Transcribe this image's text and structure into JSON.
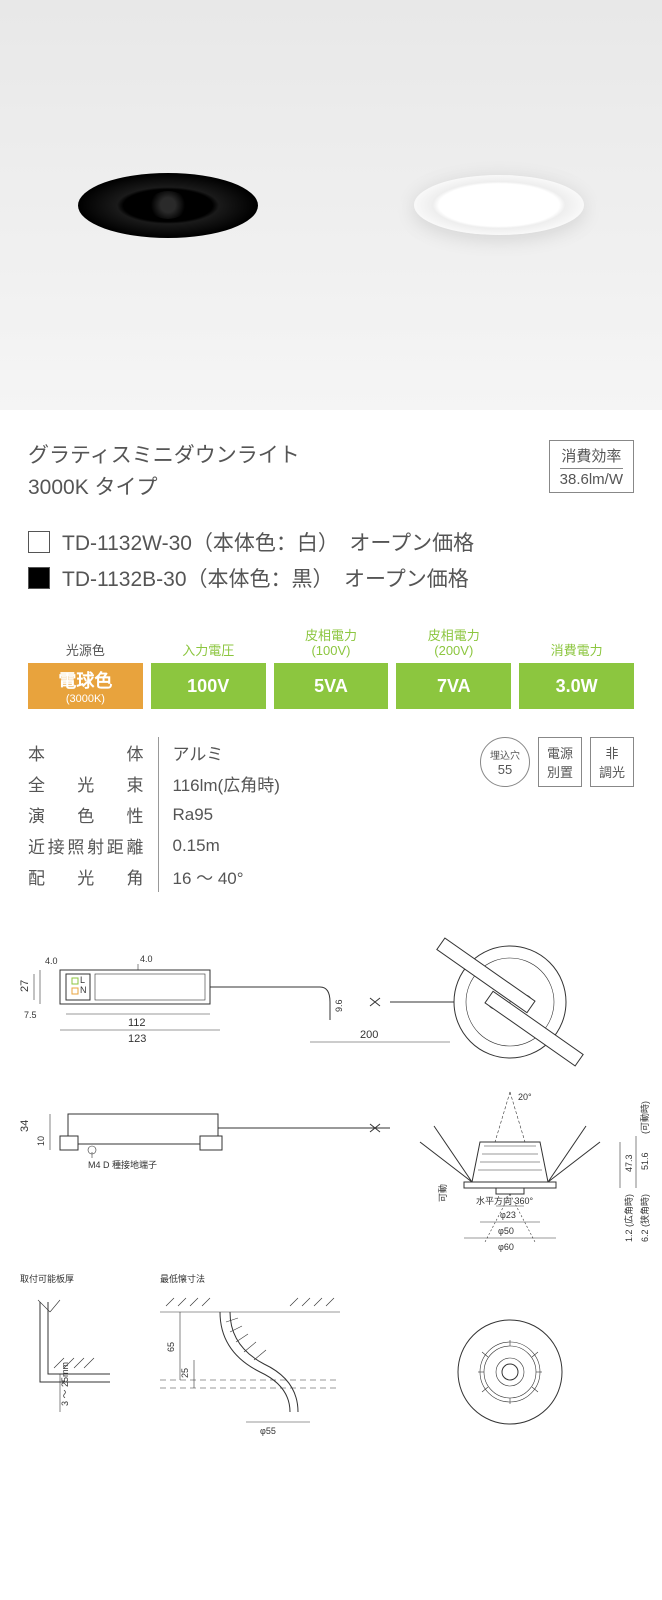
{
  "product_image": {
    "bg_gradient_top": "#e8e8e8",
    "bg_gradient_bottom": "#f5f5f5"
  },
  "header": {
    "title_line1": "グラティスミニダウンライト",
    "title_line2": "3000K タイプ",
    "efficiency_label": "消費効率",
    "efficiency_value": "38.6lm/W"
  },
  "models": [
    {
      "swatch": "white",
      "code": "TD-1132W-30",
      "body_color": "（本体色：白）",
      "price": "オープン価格"
    },
    {
      "swatch": "black",
      "code": "TD-1132B-30",
      "body_color": "（本体色：黒）",
      "price": "オープン価格"
    }
  ],
  "spec_bar": {
    "colors": {
      "orange_bg": "#e8a33d",
      "green_bg": "#8cc63f",
      "green_text": "#8cc63f"
    },
    "items": [
      {
        "kind": "orange",
        "label": "光源色",
        "value": "電球色",
        "sub": "(3000K)"
      },
      {
        "kind": "green",
        "label": "入力電圧",
        "value": "100V"
      },
      {
        "kind": "green",
        "label": "皮相電力\n(100V)",
        "value": "5VA"
      },
      {
        "kind": "green",
        "label": "皮相電力\n(200V)",
        "value": "7VA"
      },
      {
        "kind": "green",
        "label": "消費電力",
        "value": "3.0W"
      }
    ]
  },
  "details": [
    {
      "k": "本体",
      "v": "アルミ"
    },
    {
      "k": "全光束",
      "v": "116lm(広角時)"
    },
    {
      "k": "演色性",
      "v": "Ra95"
    },
    {
      "k": "近接照射距離",
      "v": "0.15m"
    },
    {
      "k": "配光角",
      "v": "16 ～ 40°"
    }
  ],
  "badges": [
    {
      "shape": "circle",
      "line1": "埋込穴",
      "line2": "55",
      "line1_tiny": true
    },
    {
      "shape": "rect",
      "line1": "電源",
      "line2": "別置"
    },
    {
      "shape": "rect",
      "line1": "非",
      "line2": "調光"
    }
  ],
  "diagram": {
    "dims": {
      "driver_width_a": "112",
      "driver_width_b": "123",
      "driver_h1": "27",
      "driver_h2": "4.0",
      "driver_offset": "7.5",
      "driver_top_gap": "4.0",
      "cable_drop": "9.6",
      "cable_len": "200",
      "driver2_h1": "34",
      "driver2_h2": "10",
      "ground_terminal": "M4  D 種接地端子",
      "tilt_angle": "20°",
      "body_h1": "47.3",
      "body_h2": "51.6",
      "body_h2_note": "(可動時)",
      "drop1": "1.2 (広角時)",
      "drop2": "6.2 (狭角時)",
      "phi23": "φ23",
      "phi50": "φ50",
      "phi60": "φ60",
      "rotate_note": "水平方向 360°",
      "tilt_note": "可動",
      "mount_title": "取付可能板厚",
      "mount_range": "3 ～ 25mm",
      "depth_title": "最低懐寸法",
      "depth_a": "65",
      "depth_b": "25",
      "depth_phi": "φ55"
    }
  }
}
